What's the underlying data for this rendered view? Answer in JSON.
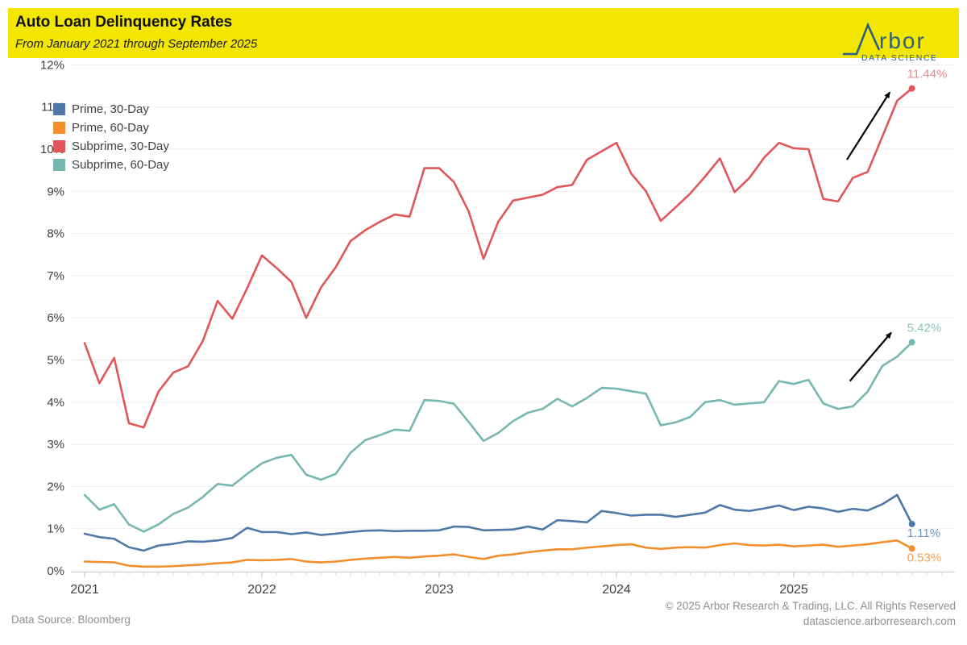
{
  "header": {
    "title": "Auto Loan Delinquency Rates",
    "subtitle": "From January 2021 through September 2025",
    "banner_color": "#f3e600",
    "logo": {
      "brand": "Arbor",
      "brand_glyph_text": "rbor",
      "tagline": "DATA SCIENCE",
      "color": "#2b5f82"
    }
  },
  "legend": {
    "items": [
      {
        "label": "Prime, 30-Day",
        "color": "#4e79a7"
      },
      {
        "label": "Prime, 60-Day",
        "color": "#f28e2b"
      },
      {
        "label": "Subprime, 30-Day",
        "color": "#e15759"
      },
      {
        "label": "Subprime, 60-Day",
        "color": "#76b7b2"
      }
    ]
  },
  "chart_data": {
    "type": "line",
    "title": "Auto Loan Delinquency Rates",
    "x_start": "2021-01",
    "x_end": "2025-09",
    "frequency": "monthly",
    "x_axis": {
      "year_labels": [
        "2021",
        "2022",
        "2023",
        "2024",
        "2025"
      ]
    },
    "y_axis": {
      "min": 0,
      "max": 12,
      "step": 1,
      "labels": [
        "0%",
        "1%",
        "2%",
        "3%",
        "4%",
        "5%",
        "6%",
        "7%",
        "8%",
        "9%",
        "10%",
        "11%",
        "12%"
      ]
    },
    "grid": true,
    "legend_position": "top-left",
    "series": [
      {
        "name": "Prime, 30-Day",
        "color": "#4e79a7",
        "end_label": "1.11%",
        "end_label_color": "#6f94ba",
        "label_position": "below",
        "values": [
          0.88,
          0.8,
          0.76,
          0.56,
          0.48,
          0.6,
          0.64,
          0.7,
          0.69,
          0.72,
          0.78,
          1.02,
          0.92,
          0.92,
          0.87,
          0.91,
          0.85,
          0.88,
          0.92,
          0.95,
          0.96,
          0.94,
          0.95,
          0.95,
          0.96,
          1.05,
          1.04,
          0.96,
          0.97,
          0.98,
          1.05,
          0.98,
          1.2,
          1.18,
          1.15,
          1.42,
          1.37,
          1.31,
          1.33,
          1.33,
          1.28,
          1.33,
          1.38,
          1.56,
          1.45,
          1.42,
          1.48,
          1.55,
          1.44,
          1.52,
          1.48,
          1.4,
          1.47,
          1.43,
          1.58,
          1.8,
          1.11
        ]
      },
      {
        "name": "Prime, 60-Day",
        "color": "#f28e2b",
        "end_label": "0.53%",
        "end_label_color": "#f5a04c",
        "label_position": "below",
        "values": [
          0.22,
          0.21,
          0.2,
          0.12,
          0.1,
          0.1,
          0.11,
          0.13,
          0.15,
          0.18,
          0.2,
          0.26,
          0.25,
          0.26,
          0.28,
          0.22,
          0.2,
          0.22,
          0.26,
          0.29,
          0.31,
          0.33,
          0.31,
          0.34,
          0.36,
          0.39,
          0.33,
          0.28,
          0.36,
          0.39,
          0.44,
          0.48,
          0.51,
          0.51,
          0.55,
          0.58,
          0.61,
          0.63,
          0.55,
          0.52,
          0.55,
          0.56,
          0.55,
          0.61,
          0.65,
          0.61,
          0.6,
          0.62,
          0.58,
          0.6,
          0.62,
          0.57,
          0.6,
          0.63,
          0.68,
          0.72,
          0.53
        ]
      },
      {
        "name": "Subprime, 30-Day",
        "color": "#e15759",
        "end_label": "11.44%",
        "end_label_color": "#e98a8c",
        "label_position": "above",
        "values": [
          5.4,
          4.45,
          5.05,
          3.5,
          3.4,
          4.25,
          4.7,
          4.85,
          5.45,
          6.4,
          5.98,
          6.7,
          7.48,
          7.18,
          6.85,
          6.0,
          6.72,
          7.2,
          7.82,
          8.08,
          8.28,
          8.45,
          8.4,
          9.55,
          9.55,
          9.22,
          8.52,
          7.4,
          8.28,
          8.78,
          8.85,
          8.92,
          9.1,
          9.15,
          9.75,
          9.95,
          10.15,
          9.42,
          9.0,
          8.3,
          8.62,
          8.95,
          9.35,
          9.78,
          8.98,
          9.32,
          9.8,
          10.15,
          10.02,
          10.0,
          8.82,
          8.76,
          9.32,
          9.46,
          10.3,
          11.15,
          11.44
        ]
      },
      {
        "name": "Subprime, 60-Day",
        "color": "#76b7b2",
        "end_label": "5.42%",
        "end_label_color": "#8cc3be",
        "label_position": "above",
        "values": [
          1.8,
          1.45,
          1.58,
          1.1,
          0.93,
          1.1,
          1.35,
          1.5,
          1.75,
          2.06,
          2.02,
          2.3,
          2.55,
          2.68,
          2.75,
          2.28,
          2.16,
          2.3,
          2.8,
          3.1,
          3.22,
          3.35,
          3.32,
          4.05,
          4.03,
          3.96,
          3.53,
          3.08,
          3.27,
          3.55,
          3.75,
          3.84,
          4.08,
          3.9,
          4.1,
          4.34,
          4.32,
          4.26,
          4.2,
          3.45,
          3.52,
          3.65,
          4.0,
          4.05,
          3.94,
          3.97,
          4.0,
          4.5,
          4.43,
          4.53,
          3.97,
          3.84,
          3.9,
          4.25,
          4.86,
          5.08,
          5.42
        ]
      }
    ],
    "annotations": {
      "arrows": [
        {
          "x_from": 51.6,
          "y_from": 9.75,
          "x_to": 54.5,
          "y_to": 11.35
        },
        {
          "x_from": 51.8,
          "y_from": 4.5,
          "x_to": 54.6,
          "y_to": 5.65
        }
      ]
    }
  },
  "footer": {
    "source": "Data Source: Bloomberg",
    "copyright": "© 2025 Arbor Research & Trading, LLC. All Rights Reserved",
    "website": "datascience.arborresearch.com"
  }
}
